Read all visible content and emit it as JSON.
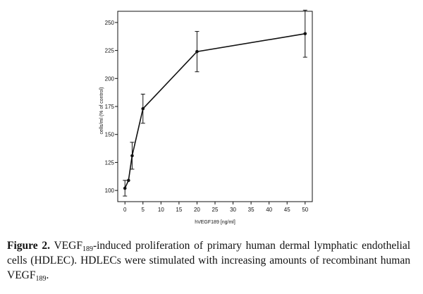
{
  "chart_data": {
    "type": "line",
    "x": [
      0,
      1,
      2,
      5,
      20,
      50
    ],
    "series": [
      {
        "name": "VEGF189",
        "values": [
          102,
          109,
          131,
          173,
          224,
          240
        ],
        "error": [
          7,
          0,
          12,
          13,
          18,
          21
        ]
      }
    ],
    "xlabel": "hVEGF189 [ng/ml]",
    "ylabel": "cells/ml (% of control)",
    "xlim": [
      -2,
      52
    ],
    "ylim": [
      90,
      260
    ],
    "xticks": [
      0,
      5,
      10,
      15,
      20,
      25,
      30,
      35,
      40,
      45,
      50
    ],
    "yticks": [
      100,
      125,
      150,
      175,
      200,
      225,
      250
    ],
    "grid": false
  },
  "caption": {
    "label": "Figure 2.",
    "part1": " VEGF",
    "sub1": "189",
    "part2": "-induced proliferation of primary human dermal lymphatic endothelial cells (HDLEC). HDLECs were stimulated with increasing amounts of recombinant human VEGF",
    "sub2": "189",
    "part3": "."
  }
}
